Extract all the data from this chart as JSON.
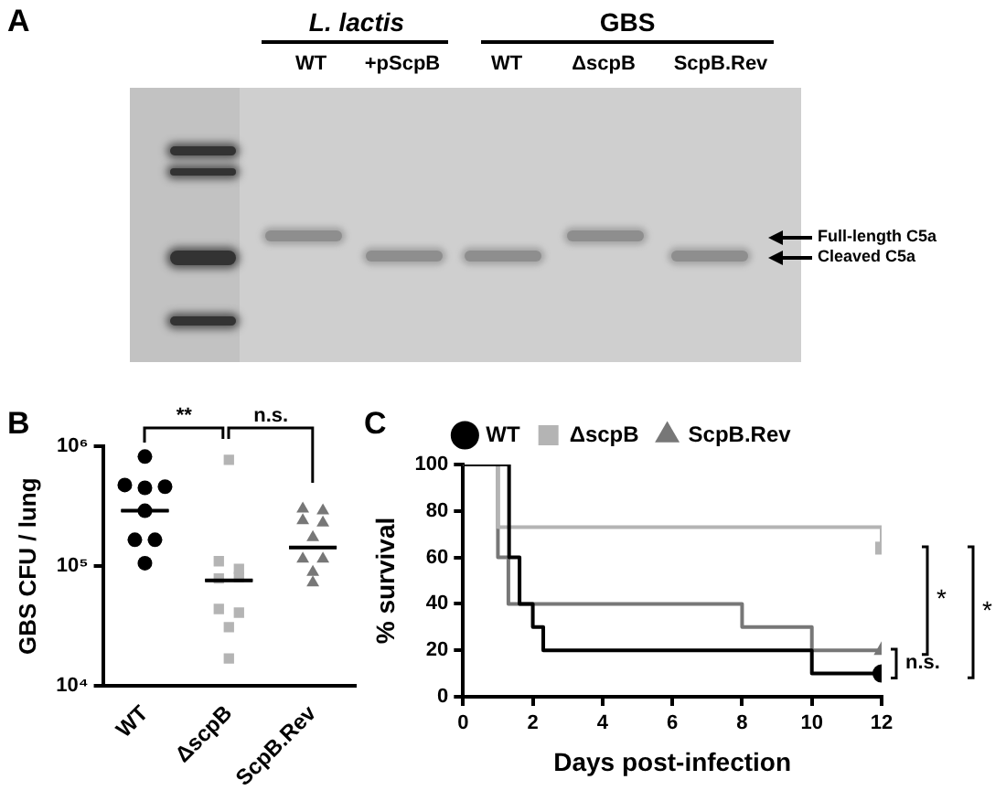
{
  "chart_data": [
    {
      "type": "other",
      "title": "A",
      "annotations": [
        "L. lactis",
        "GBS",
        "WT",
        "+pScpB",
        "WT",
        "ΔscpB",
        "ScpB.Rev",
        "Full-length C5a",
        "Cleaved C5a"
      ]
    },
    {
      "type": "scatter",
      "title": "B",
      "ylabel": "GBS CFU / lung",
      "categories": [
        "WT",
        "ΔscpB",
        "ScpB.Rev"
      ],
      "log": "y",
      "ylim": [
        10000,
        1000000
      ],
      "yticks": [
        {
          "value": 10000,
          "label": "10⁴"
        },
        {
          "value": 100000,
          "label": "10⁵"
        },
        {
          "value": 1000000,
          "label": "10⁶"
        }
      ],
      "grid": false,
      "legend": false,
      "annotations": [
        "**",
        "n.s."
      ],
      "series": [
        {
          "color": "#000000",
          "marker": "circle",
          "x": [
            "WT",
            "WT",
            "WT",
            "WT",
            "WT",
            "WT",
            "WT",
            "WT"
          ],
          "values": [
            820000,
            475000,
            450000,
            460000,
            290000,
            166000,
            166000,
            106000
          ]
        },
        {
          "color": "#b4b4b4",
          "marker": "square",
          "x": [
            "ΔscpB",
            "ΔscpB",
            "ΔscpB",
            "ΔscpB",
            "ΔscpB",
            "ΔscpB",
            "ΔscpB",
            "ΔscpB",
            "ΔscpB"
          ],
          "values": [
            770000,
            110000,
            95000,
            79000,
            81000,
            44000,
            41000,
            31000,
            17000
          ]
        },
        {
          "color": "#777777",
          "marker": "triangle",
          "x": [
            "ScpB.Rev",
            "ScpB.Rev",
            "ScpB.Rev",
            "ScpB.Rev",
            "ScpB.Rev",
            "ScpB.Rev",
            "ScpB.Rev",
            "ScpB.Rev",
            "ScpB.Rev"
          ],
          "values": [
            300000,
            290000,
            240000,
            230000,
            174000,
            115000,
            115000,
            89000,
            73000
          ]
        },
        {
          "type": "box",
          "color": "#000000",
          "boxes": [
            {
              "low": 290000,
              "q1": 290000,
              "median": 290000,
              "q3": 290000,
              "high": 290000
            },
            {
              "low": 76000,
              "q1": 76000,
              "median": 76000,
              "q3": 76000,
              "high": 76000
            },
            {
              "low": 143000,
              "q1": 143000,
              "median": 143000,
              "q3": 143000,
              "high": 143000
            }
          ]
        }
      ]
    },
    {
      "type": "step",
      "title": "C",
      "xlabel": "Days post-infection",
      "ylabel": "% survival",
      "xlim": [
        0,
        12
      ],
      "xticks": [
        0,
        2,
        4,
        6,
        8,
        10,
        12
      ],
      "ylim": [
        0,
        100
      ],
      "yticks": [
        0,
        20,
        40,
        60,
        80,
        100
      ],
      "grid": false,
      "legend": "top",
      "annotations": [
        "n.s.",
        "*",
        "*"
      ],
      "series": [
        {
          "color": "#000000",
          "marker": "none",
          "x": [
            0,
            1.32,
            1.62,
            2,
            2.3,
            10,
            12
          ],
          "values": [
            100,
            60,
            40,
            30,
            20,
            10,
            10
          ]
        },
        {
          "color": "#b4b4b4",
          "marker": "none",
          "x": [
            0,
            1,
            12
          ],
          "values": [
            100,
            73,
            64
          ]
        },
        {
          "color": "#777777",
          "marker": "none",
          "x": [
            0,
            1,
            1.3,
            8,
            10,
            12
          ],
          "values": [
            100,
            60,
            40,
            30,
            20,
            20
          ]
        },
        {
          "type": "scatter",
          "name": "WT",
          "color": "#000000",
          "marker": "circle",
          "x": [
            12
          ],
          "values": [
            10
          ]
        },
        {
          "type": "scatter",
          "name": "ΔscpB",
          "color": "#b4b4b4",
          "marker": "square",
          "x": [
            12
          ],
          "values": [
            64
          ]
        },
        {
          "type": "scatter",
          "name": "ScpB.Rev",
          "color": "#777777",
          "marker": "triangle",
          "x": [
            12
          ],
          "values": [
            20
          ]
        }
      ]
    }
  ]
}
